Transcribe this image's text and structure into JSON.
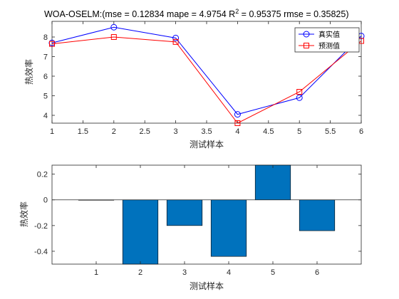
{
  "chart_data": [
    {
      "type": "line",
      "title_main": "WOA-OSELM:(mse = 0.12834 mape = 4.9754  R",
      "title_sup": "2",
      "title_rest": " = 0.95375 rmse = 0.35825)",
      "xlabel": "测试样本",
      "ylabel": "热效率",
      "x": [
        1,
        2,
        3,
        4,
        5,
        6
      ],
      "xlim": [
        1,
        6
      ],
      "ylim": [
        3.6,
        8.8
      ],
      "xticks": [
        "1",
        "1.5",
        "2",
        "2.5",
        "3",
        "3.5",
        "4",
        "4.5",
        "5",
        "5.5",
        "6"
      ],
      "yticks": [
        "4",
        "5",
        "6",
        "7",
        "8"
      ],
      "grid": false,
      "legend_position": "top-right",
      "series": [
        {
          "name": "真实值",
          "values": [
            7.7,
            8.5,
            7.95,
            4.05,
            4.9,
            8.05
          ],
          "color": "#0000ff",
          "marker": "circle"
        },
        {
          "name": "预测值",
          "values": [
            7.65,
            8.0,
            7.75,
            3.6,
            5.2,
            7.8
          ],
          "color": "#ff0000",
          "marker": "square"
        }
      ]
    },
    {
      "type": "bar",
      "xlabel": "测试样本",
      "ylabel": "热效率",
      "categories": [
        "1",
        "2",
        "3",
        "4",
        "5",
        "6"
      ],
      "values": [
        0.0,
        -0.5,
        -0.2,
        -0.44,
        0.3,
        -0.24
      ],
      "xlim": [
        0,
        7
      ],
      "ylim": [
        -0.5,
        0.27
      ],
      "yticks": [
        "0.2",
        "0",
        "-0.2",
        "-0.4"
      ],
      "bar_color": "#0072bd",
      "grid": false
    }
  ]
}
